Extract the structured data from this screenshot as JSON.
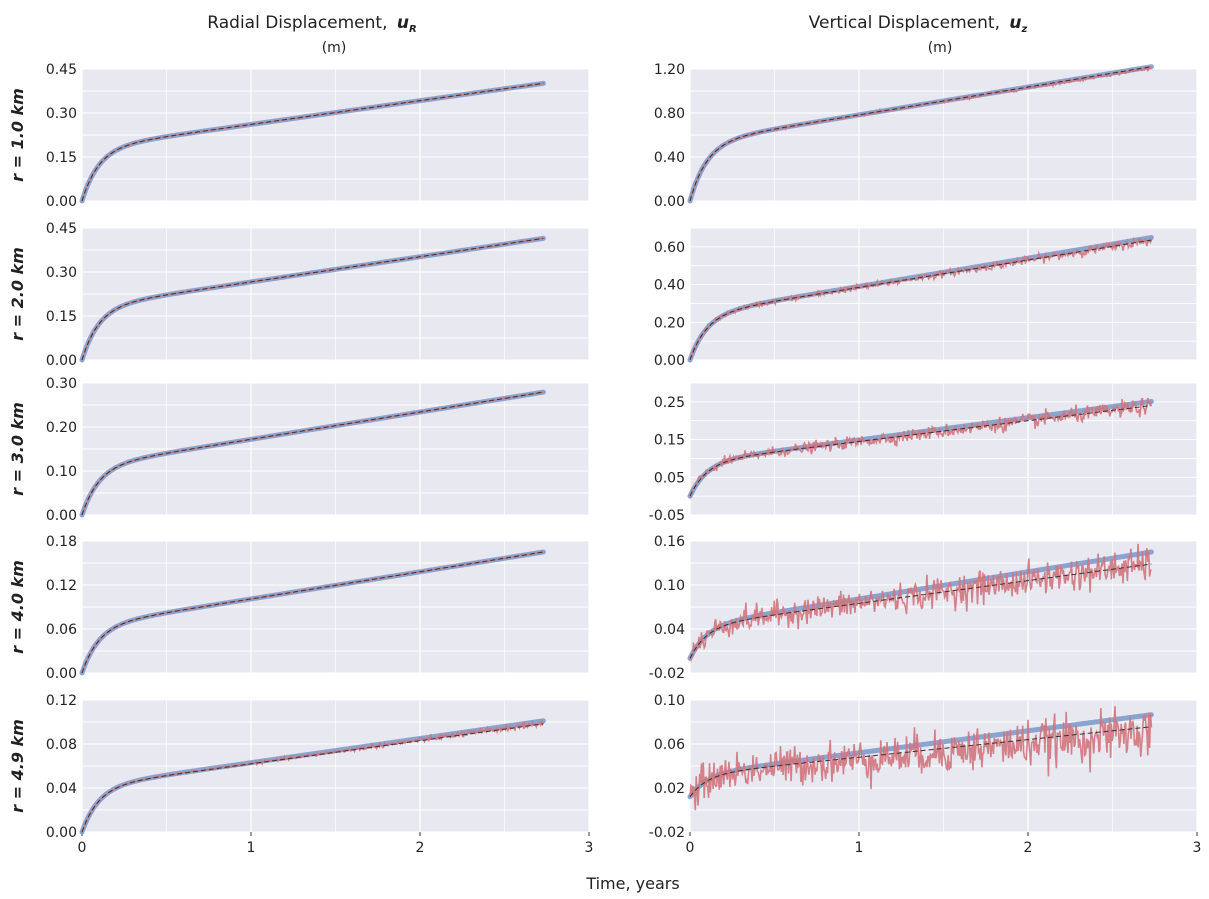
{
  "headers": {
    "left_title": "Radial Displacement,",
    "left_symbol": "u",
    "left_sub": "R",
    "left_unit": "(m)",
    "right_title": "Vertical Displacement,",
    "right_symbol": "u",
    "right_sub": "z",
    "right_unit": "(m)"
  },
  "x_label": "Time, years",
  "colors": {
    "model": "#7f9ccb",
    "observed": "#d2747c",
    "fit": "#333333",
    "panel_bg": "#e8e8f0",
    "grid": "#ffffff"
  },
  "chart_data": [
    {
      "type": "line",
      "column": "radial",
      "row_label": "r = 1.0 km",
      "xlim": [
        0,
        3
      ],
      "x_ticks": [
        "0",
        "1",
        "2",
        "3"
      ],
      "ylim": [
        0,
        0.45
      ],
      "y_ticks": [
        "0.00",
        "0.15",
        "0.30",
        "0.45"
      ],
      "y_tick_values": [
        0,
        0.15,
        0.3,
        0.45
      ],
      "series": [
        {
          "key": "model",
          "t_end": 2.73,
          "a": 0.18,
          "b": 0.081,
          "tau": 0.1
        },
        {
          "key": "observed",
          "t_end": 2.73,
          "a": 0.18,
          "b": 0.081,
          "tau": 0.1,
          "noise_start": 0.0,
          "noise_end": 0.0,
          "drift": 0
        },
        {
          "key": "fit",
          "t_end": 2.73,
          "a": 0.18,
          "b": 0.081,
          "tau": 0.1
        }
      ]
    },
    {
      "type": "line",
      "column": "vertical",
      "row_label": "r = 1.0 km",
      "xlim": [
        0,
        3
      ],
      "x_ticks": [
        "0",
        "1",
        "2",
        "3"
      ],
      "ylim": [
        0,
        1.2
      ],
      "y_ticks": [
        "0.00",
        "0.40",
        "0.80",
        "1.20"
      ],
      "y_tick_values": [
        0,
        0.4,
        0.8,
        1.2
      ],
      "series": [
        {
          "key": "model",
          "t_end": 2.73,
          "a": 0.53,
          "b": 0.253,
          "tau": 0.1
        },
        {
          "key": "observed",
          "t_end": 2.73,
          "a": 0.53,
          "b": 0.253,
          "tau": 0.1,
          "noise_start": 0.004,
          "noise_end": 0.008,
          "drift": -0.01
        },
        {
          "key": "fit",
          "t_end": 2.73,
          "a": 0.53,
          "b": 0.253,
          "tau": 0.1
        }
      ]
    },
    {
      "type": "line",
      "column": "radial",
      "row_label": "r = 2.0 km",
      "xlim": [
        0,
        3
      ],
      "x_ticks": [
        "0",
        "1",
        "2",
        "3"
      ],
      "ylim": [
        0,
        0.45
      ],
      "y_ticks": [
        "0.00",
        "0.15",
        "0.30",
        "0.45"
      ],
      "y_tick_values": [
        0,
        0.15,
        0.3,
        0.45
      ],
      "series": [
        {
          "key": "model",
          "t_end": 2.73,
          "a": 0.18,
          "b": 0.086,
          "tau": 0.1
        },
        {
          "key": "observed",
          "t_end": 2.73,
          "a": 0.18,
          "b": 0.086,
          "tau": 0.1,
          "noise_start": 0.0,
          "noise_end": 0.0,
          "drift": 0
        },
        {
          "key": "fit",
          "t_end": 2.73,
          "a": 0.18,
          "b": 0.086,
          "tau": 0.1
        }
      ]
    },
    {
      "type": "line",
      "column": "vertical",
      "row_label": "r = 2.0 km",
      "xlim": [
        0,
        3
      ],
      "x_ticks": [
        "0",
        "1",
        "2",
        "3"
      ],
      "ylim": [
        0,
        0.7
      ],
      "y_ticks": [
        "0.00",
        "0.20",
        "0.40",
        "0.60"
      ],
      "y_tick_values": [
        0,
        0.2,
        0.4,
        0.6
      ],
      "series": [
        {
          "key": "model",
          "t_end": 2.73,
          "a": 0.24,
          "b": 0.15,
          "tau": 0.1
        },
        {
          "key": "observed",
          "t_end": 2.73,
          "a": 0.24,
          "b": 0.15,
          "tau": 0.1,
          "noise_start": 0.005,
          "noise_end": 0.012,
          "drift": -0.015
        },
        {
          "key": "fit",
          "t_end": 2.73,
          "a": 0.24,
          "b": 0.145,
          "tau": 0.1
        }
      ]
    },
    {
      "type": "line",
      "column": "radial",
      "row_label": "r = 3.0 km",
      "xlim": [
        0,
        3
      ],
      "x_ticks": [
        "0",
        "1",
        "2",
        "3"
      ],
      "ylim": [
        0,
        0.3
      ],
      "y_ticks": [
        "0.00",
        "0.10",
        "0.20",
        "0.30"
      ],
      "y_tick_values": [
        0,
        0.1,
        0.2,
        0.3
      ],
      "series": [
        {
          "key": "model",
          "t_end": 2.73,
          "a": 0.11,
          "b": 0.062,
          "tau": 0.1
        },
        {
          "key": "observed",
          "t_end": 2.73,
          "a": 0.11,
          "b": 0.062,
          "tau": 0.1,
          "noise_start": 0.0,
          "noise_end": 0.0,
          "drift": 0
        },
        {
          "key": "fit",
          "t_end": 2.73,
          "a": 0.11,
          "b": 0.062,
          "tau": 0.1
        }
      ]
    },
    {
      "type": "line",
      "column": "vertical",
      "row_label": "r = 3.0 km",
      "xlim": [
        0,
        3
      ],
      "x_ticks": [
        "0",
        "1",
        "2",
        "3"
      ],
      "ylim": [
        -0.05,
        0.3
      ],
      "y_ticks": [
        "-0.05",
        "0.05",
        "0.15",
        "0.25"
      ],
      "y_tick_values": [
        -0.05,
        0.05,
        0.15,
        0.25
      ],
      "series": [
        {
          "key": "model",
          "t_end": 2.73,
          "y0": 0.0,
          "a": 0.09,
          "b": 0.059,
          "tau": 0.1
        },
        {
          "key": "observed",
          "t_end": 2.73,
          "y0": 0.0,
          "a": 0.09,
          "b": 0.059,
          "tau": 0.1,
          "noise_start": 0.006,
          "noise_end": 0.011,
          "drift": -0.012
        },
        {
          "key": "fit",
          "t_end": 2.73,
          "y0": 0.0,
          "a": 0.09,
          "b": 0.055,
          "tau": 0.1
        }
      ]
    },
    {
      "type": "line",
      "column": "radial",
      "row_label": "r = 4.0 km",
      "xlim": [
        0,
        3
      ],
      "x_ticks": [
        "0",
        "1",
        "2",
        "3"
      ],
      "ylim": [
        0,
        0.18
      ],
      "y_ticks": [
        "0.00",
        "0.06",
        "0.12",
        "0.18"
      ],
      "y_tick_values": [
        0,
        0.06,
        0.12,
        0.18
      ],
      "series": [
        {
          "key": "model",
          "t_end": 2.73,
          "a": 0.064,
          "b": 0.037,
          "tau": 0.1
        },
        {
          "key": "observed",
          "t_end": 2.73,
          "a": 0.064,
          "b": 0.037,
          "tau": 0.1,
          "noise_start": 0.0,
          "noise_end": 0.0,
          "drift": 0
        },
        {
          "key": "fit",
          "t_end": 2.73,
          "a": 0.064,
          "b": 0.037,
          "tau": 0.1
        }
      ]
    },
    {
      "type": "line",
      "column": "vertical",
      "row_label": "r = 4.0 km",
      "xlim": [
        0,
        3
      ],
      "x_ticks": [
        "0",
        "1",
        "2",
        "3"
      ],
      "ylim": [
        -0.02,
        0.16
      ],
      "y_ticks": [
        "-0.02",
        "0.04",
        "0.10",
        "0.16"
      ],
      "y_tick_values": [
        -0.02,
        0.04,
        0.1,
        0.16
      ],
      "series": [
        {
          "key": "model",
          "t_end": 2.73,
          "y0": 0.0,
          "a": 0.044,
          "b": 0.037,
          "tau": 0.1
        },
        {
          "key": "observed",
          "t_end": 2.73,
          "y0": 0.0,
          "a": 0.044,
          "b": 0.037,
          "tau": 0.1,
          "noise_start": 0.008,
          "noise_end": 0.012,
          "drift": -0.016
        },
        {
          "key": "fit",
          "t_end": 2.73,
          "y0": 0.0,
          "a": 0.044,
          "b": 0.031,
          "tau": 0.1
        }
      ]
    },
    {
      "type": "line",
      "column": "radial",
      "row_label": "r = 4.9 km",
      "xlim": [
        0,
        3
      ],
      "x_ticks": [
        "0",
        "1",
        "2",
        "3"
      ],
      "ylim": [
        0,
        0.12
      ],
      "y_ticks": [
        "0.00",
        "0.04",
        "0.08",
        "0.12"
      ],
      "y_tick_values": [
        0,
        0.04,
        0.08,
        0.12
      ],
      "series": [
        {
          "key": "model",
          "t_end": 2.73,
          "a": 0.041,
          "b": 0.022,
          "tau": 0.1
        },
        {
          "key": "observed",
          "t_end": 2.73,
          "a": 0.041,
          "b": 0.022,
          "tau": 0.1,
          "noise_start": 0.0,
          "noise_end": 0.0015,
          "drift": -0.002
        },
        {
          "key": "fit",
          "t_end": 2.73,
          "a": 0.041,
          "b": 0.021,
          "tau": 0.1
        }
      ]
    },
    {
      "type": "line",
      "column": "vertical",
      "row_label": "r = 4.9 km",
      "xlim": [
        0,
        3
      ],
      "x_ticks": [
        "0",
        "1",
        "2",
        "3"
      ],
      "ylim": [
        -0.02,
        0.1
      ],
      "y_ticks": [
        "-0.02",
        "0.02",
        "0.06",
        "0.10"
      ],
      "y_tick_values": [
        -0.02,
        0.02,
        0.06,
        0.1
      ],
      "series": [
        {
          "key": "model",
          "t_end": 2.73,
          "y0": 0.012,
          "a": 0.02,
          "b": 0.02,
          "tau": 0.1
        },
        {
          "key": "observed",
          "t_end": 2.73,
          "y0": 0.012,
          "a": 0.02,
          "b": 0.02,
          "tau": 0.1,
          "noise_start": 0.008,
          "noise_end": 0.011,
          "drift": -0.016
        },
        {
          "key": "fit",
          "t_end": 2.73,
          "y0": 0.012,
          "a": 0.02,
          "b": 0.016,
          "tau": 0.1
        }
      ]
    }
  ]
}
